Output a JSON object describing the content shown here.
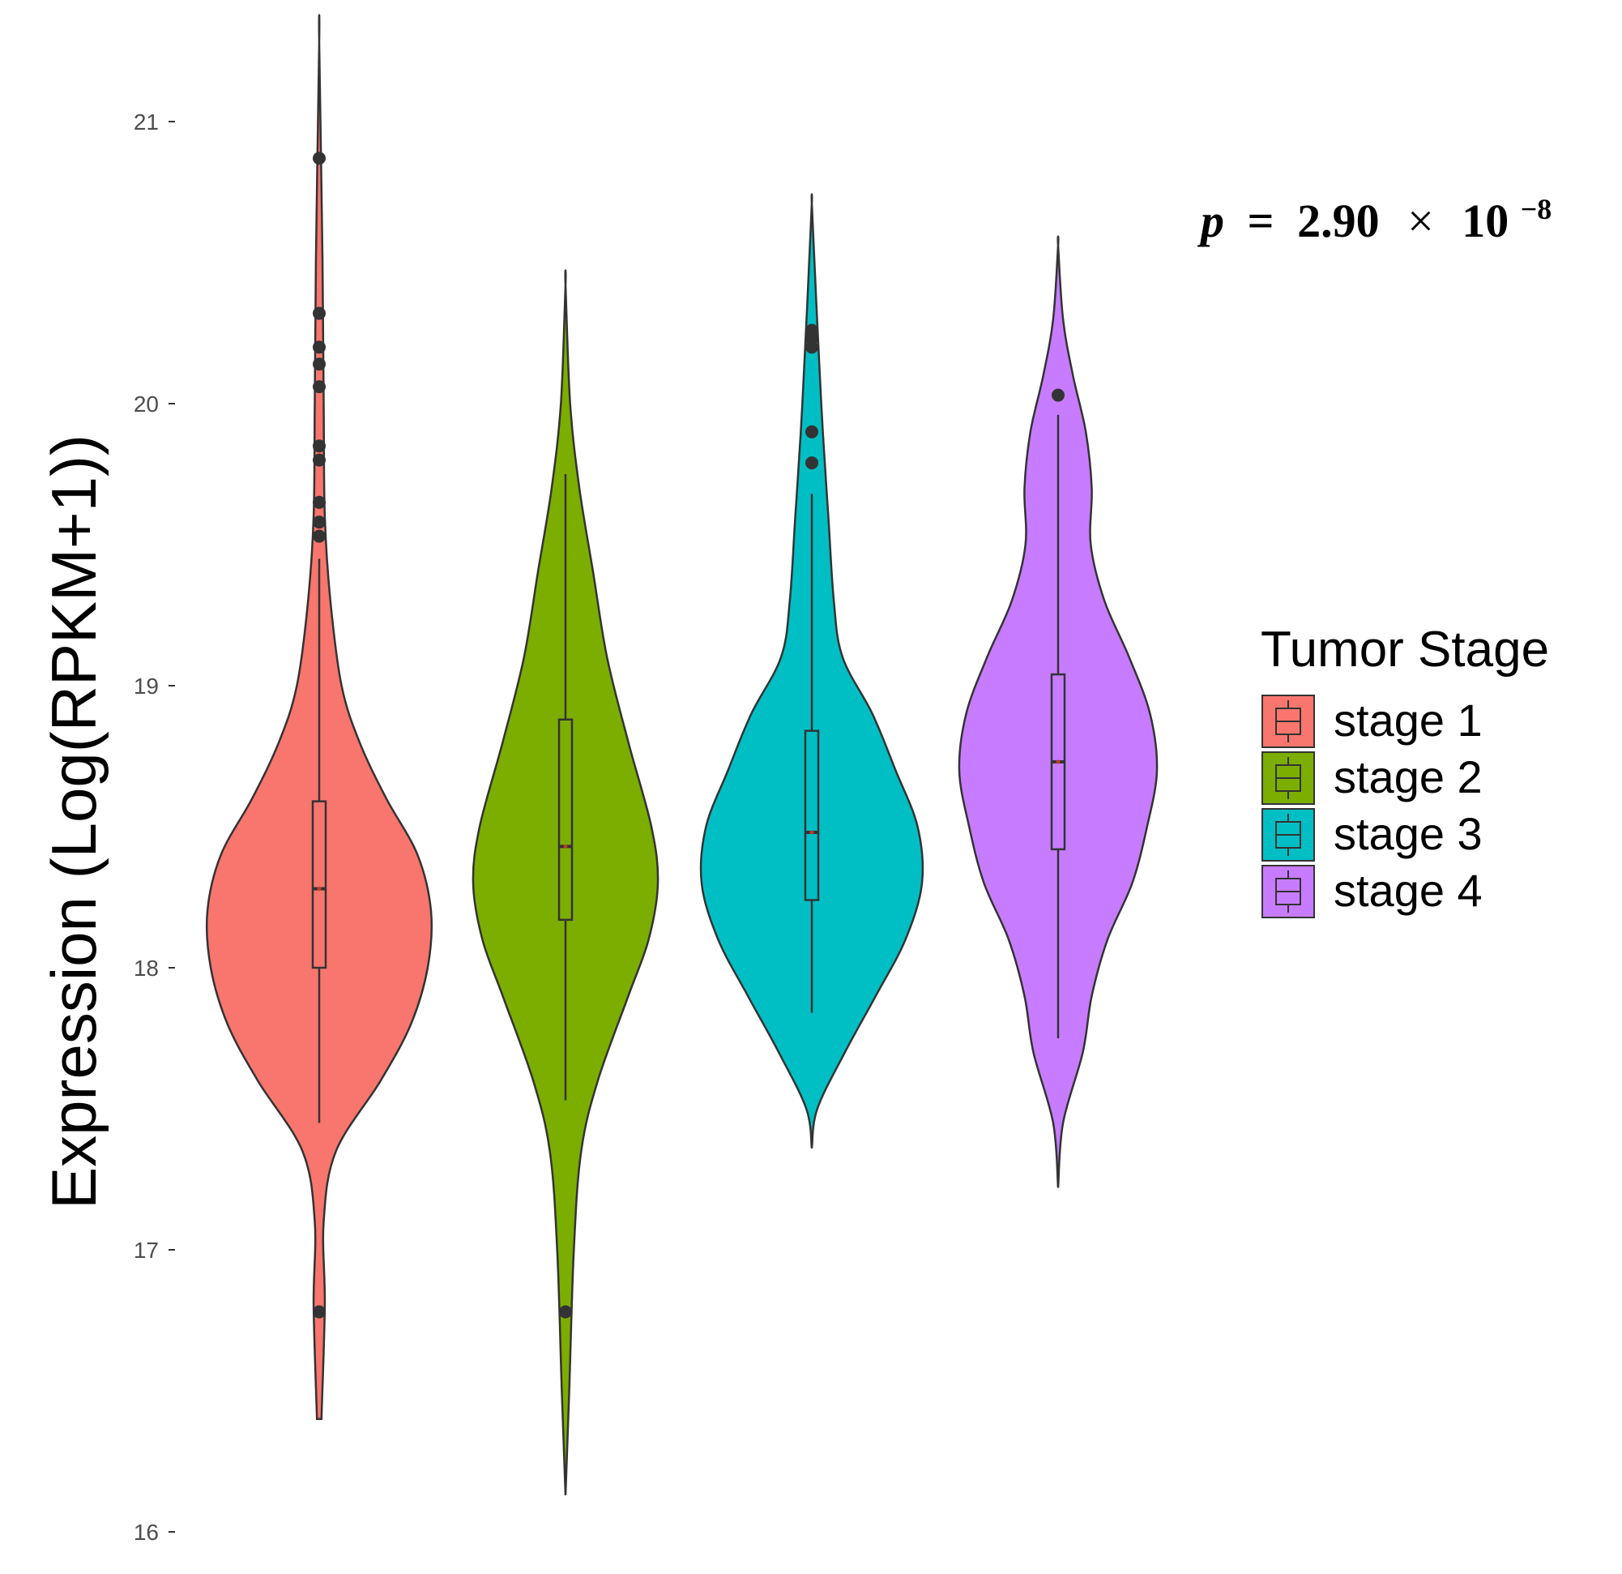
{
  "chart_data": {
    "type": "violin",
    "title": "",
    "xlabel": "",
    "ylabel": "Expression (Log(RPKM+1))",
    "ylim": [
      16,
      21.3
    ],
    "yticks": [
      "16",
      "17",
      "18",
      "19",
      "20",
      "21"
    ],
    "grid": false,
    "annotation": {
      "var": "p",
      "equals": "=",
      "mantissa": "2.90",
      "times": "×",
      "base": "10",
      "exponent": "−8"
    },
    "legend": {
      "title": "Tumor Stage",
      "position": "right"
    },
    "series": [
      {
        "name": "stage 1",
        "color": "#F8766D",
        "median": 18.28,
        "q1": 18.0,
        "q3": 18.59,
        "whisker_low": 17.45,
        "whisker_high": 19.45,
        "violin_min": 16.4,
        "violin_max": 21.28,
        "outliers": [
          20.87,
          20.32,
          20.2,
          20.14,
          20.06,
          19.85,
          19.8,
          19.65,
          19.58,
          19.53,
          16.78
        ],
        "density": [
          [
            16.4,
            0.02
          ],
          [
            16.8,
            0.05
          ],
          [
            17.1,
            0.04
          ],
          [
            17.35,
            0.15
          ],
          [
            17.6,
            0.55
          ],
          [
            17.8,
            0.82
          ],
          [
            18.0,
            0.97
          ],
          [
            18.2,
            1.0
          ],
          [
            18.4,
            0.88
          ],
          [
            18.6,
            0.6
          ],
          [
            18.8,
            0.36
          ],
          [
            19.0,
            0.2
          ],
          [
            19.3,
            0.1
          ],
          [
            19.6,
            0.05
          ],
          [
            20.0,
            0.04
          ],
          [
            20.5,
            0.03
          ],
          [
            21.28,
            0.0
          ]
        ]
      },
      {
        "name": "stage 2",
        "color": "#7CAE00",
        "median": 18.43,
        "q1": 18.17,
        "q3": 18.88,
        "whisker_low": 17.53,
        "whisker_high": 19.75,
        "violin_min": 16.13,
        "violin_max": 20.42,
        "outliers": [
          16.78
        ],
        "density": [
          [
            16.13,
            0.0
          ],
          [
            16.5,
            0.04
          ],
          [
            17.0,
            0.09
          ],
          [
            17.35,
            0.17
          ],
          [
            17.6,
            0.35
          ],
          [
            17.9,
            0.68
          ],
          [
            18.1,
            0.9
          ],
          [
            18.3,
            1.0
          ],
          [
            18.5,
            0.93
          ],
          [
            18.8,
            0.68
          ],
          [
            19.1,
            0.45
          ],
          [
            19.4,
            0.3
          ],
          [
            19.7,
            0.15
          ],
          [
            20.0,
            0.05
          ],
          [
            20.42,
            0.0
          ]
        ]
      },
      {
        "name": "stage 3",
        "color": "#00BFC4",
        "median": 18.48,
        "q1": 18.24,
        "q3": 18.84,
        "whisker_low": 17.84,
        "whisker_high": 19.68,
        "violin_min": 17.36,
        "violin_max": 20.71,
        "outliers": [
          20.26,
          20.23,
          20.2,
          19.9,
          19.79
        ],
        "density": [
          [
            17.36,
            0.0
          ],
          [
            17.5,
            0.05
          ],
          [
            17.7,
            0.3
          ],
          [
            17.9,
            0.58
          ],
          [
            18.1,
            0.85
          ],
          [
            18.3,
            1.0
          ],
          [
            18.5,
            0.96
          ],
          [
            18.7,
            0.76
          ],
          [
            18.9,
            0.55
          ],
          [
            19.1,
            0.28
          ],
          [
            19.3,
            0.2
          ],
          [
            19.6,
            0.15
          ],
          [
            19.9,
            0.1
          ],
          [
            20.2,
            0.06
          ],
          [
            20.45,
            0.03
          ],
          [
            20.71,
            0.0
          ]
        ]
      },
      {
        "name": "stage 4",
        "color": "#C77CFF",
        "median": 18.73,
        "q1": 18.42,
        "q3": 19.04,
        "whisker_low": 17.75,
        "whisker_high": 19.96,
        "violin_min": 17.22,
        "violin_max": 20.56,
        "outliers": [
          20.03
        ],
        "density": [
          [
            17.22,
            0.0
          ],
          [
            17.45,
            0.05
          ],
          [
            17.7,
            0.25
          ],
          [
            17.9,
            0.34
          ],
          [
            18.1,
            0.5
          ],
          [
            18.3,
            0.75
          ],
          [
            18.5,
            0.9
          ],
          [
            18.7,
            1.0
          ],
          [
            18.9,
            0.93
          ],
          [
            19.1,
            0.72
          ],
          [
            19.3,
            0.47
          ],
          [
            19.5,
            0.33
          ],
          [
            19.7,
            0.34
          ],
          [
            19.9,
            0.28
          ],
          [
            20.1,
            0.15
          ],
          [
            20.3,
            0.05
          ],
          [
            20.56,
            0.0
          ]
        ]
      }
    ]
  }
}
